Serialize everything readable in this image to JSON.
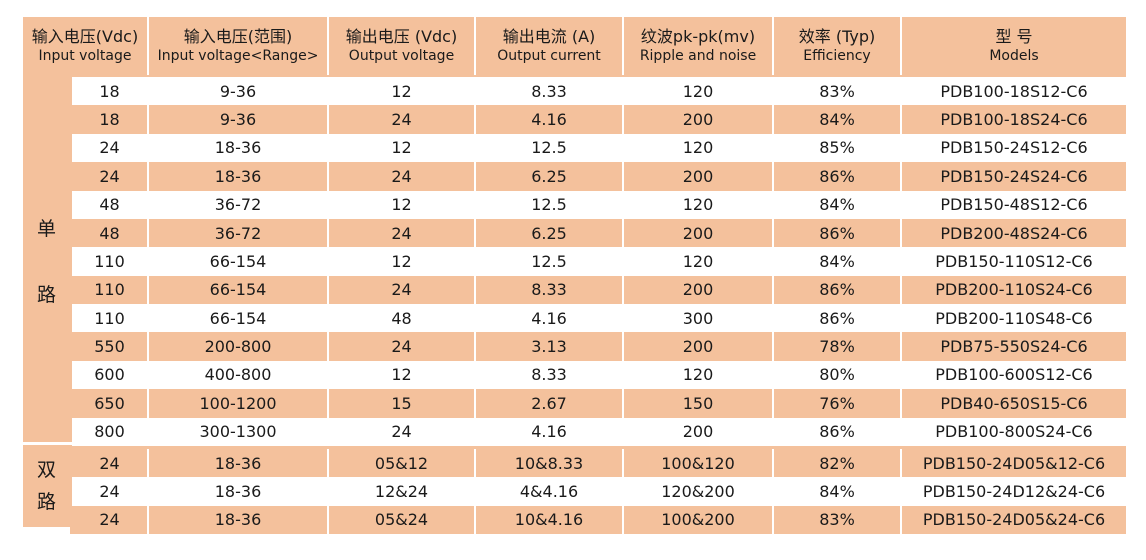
{
  "headers": [
    {
      "zh": "输入电压(Vdc)",
      "en": "Input voltage"
    },
    {
      "zh": "输入电压(范围)",
      "en": "Input voltage<Range>"
    },
    {
      "zh": "输出电压 (Vdc)",
      "en": "Output voltage"
    },
    {
      "zh": "输出电流 (A)",
      "en": "Output current"
    },
    {
      "zh": "纹波pk-pk(mv)",
      "en": "Ripple and noise"
    },
    {
      "zh": "效率 (Typ)",
      "en": "Efficiency"
    },
    {
      "zh": "型 号",
      "en": "Models"
    }
  ],
  "groups": [
    {
      "label": [
        "单",
        "路"
      ]
    },
    {
      "label": [
        "双",
        "路"
      ]
    }
  ],
  "rows": [
    [
      "18",
      "9-36",
      "12",
      "8.33",
      "120",
      "83%",
      "PDB100-18S12-C6"
    ],
    [
      "18",
      "9-36",
      "24",
      "4.16",
      "200",
      "84%",
      "PDB100-18S24-C6"
    ],
    [
      "24",
      "18-36",
      "12",
      "12.5",
      "120",
      "85%",
      "PDB150-24S12-C6"
    ],
    [
      "24",
      "18-36",
      "24",
      "6.25",
      "200",
      "86%",
      "PDB150-24S24-C6"
    ],
    [
      "48",
      "36-72",
      "12",
      "12.5",
      "120",
      "84%",
      "PDB150-48S12-C6"
    ],
    [
      "48",
      "36-72",
      "24",
      "6.25",
      "200",
      "86%",
      "PDB200-48S24-C6"
    ],
    [
      "110",
      "66-154",
      "12",
      "12.5",
      "120",
      "84%",
      "PDB150-110S12-C6"
    ],
    [
      "110",
      "66-154",
      "24",
      "8.33",
      "200",
      "86%",
      "PDB200-110S24-C6"
    ],
    [
      "110",
      "66-154",
      "48",
      "4.16",
      "300",
      "86%",
      "PDB200-110S48-C6"
    ],
    [
      "550",
      "200-800",
      "24",
      "3.13",
      "200",
      "78%",
      "PDB75-550S24-C6"
    ],
    [
      "600",
      "400-800",
      "12",
      "8.33",
      "120",
      "80%",
      "PDB100-600S12-C6"
    ],
    [
      "650",
      "100-1200",
      "15",
      "2.67",
      "150",
      "76%",
      "PDB40-650S15-C6"
    ],
    [
      "800",
      "300-1300",
      "24",
      "4.16",
      "200",
      "86%",
      "PDB100-800S24-C6"
    ],
    [
      "24",
      "18-36",
      "05&12",
      "10&8.33",
      "100&120",
      "82%",
      "PDB150-24D05&12-C6"
    ],
    [
      "24",
      "18-36",
      "12&24",
      "4&4.16",
      "120&200",
      "84%",
      "PDB150-24D12&24-C6"
    ],
    [
      "24",
      "18-36",
      "05&24",
      "10&4.16",
      "100&200",
      "83%",
      "PDB150-24D05&24-C6"
    ]
  ]
}
